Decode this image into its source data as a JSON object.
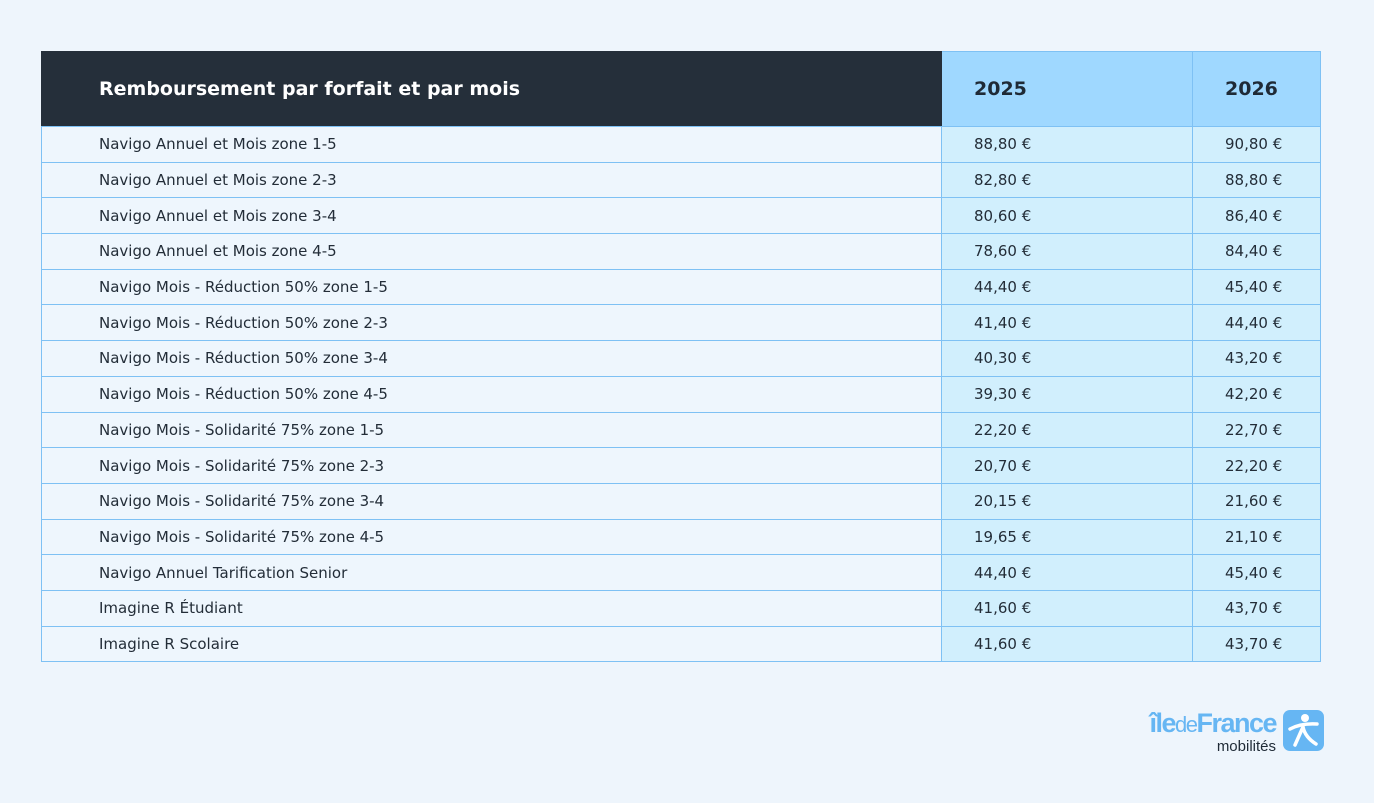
{
  "table": {
    "header": {
      "label": "Remboursement par forfait et par mois",
      "years": [
        "2025",
        "2026"
      ]
    },
    "rows": [
      {
        "label": "Navigo Annuel et Mois zone 1-5",
        "v2025": "88,80 €",
        "v2026": "90,80 €"
      },
      {
        "label": "Navigo Annuel et Mois zone 2-3",
        "v2025": "82,80 €",
        "v2026": "88,80 €"
      },
      {
        "label": "Navigo Annuel et Mois zone 3-4",
        "v2025": "80,60 €",
        "v2026": "86,40 €"
      },
      {
        "label": "Navigo Annuel et Mois zone 4-5",
        "v2025": "78,60 €",
        "v2026": "84,40 €"
      },
      {
        "label": "Navigo Mois - Réduction 50% zone 1-5",
        "v2025": "44,40 €",
        "v2026": "45,40 €"
      },
      {
        "label": "Navigo Mois - Réduction 50% zone 2-3",
        "v2025": "41,40 €",
        "v2026": "44,40 €"
      },
      {
        "label": "Navigo Mois - Réduction 50% zone 3-4",
        "v2025": "40,30 €",
        "v2026": "43,20 €"
      },
      {
        "label": "Navigo Mois - Réduction 50% zone 4-5",
        "v2025": "39,30 €",
        "v2026": "42,20 €"
      },
      {
        "label": "Navigo Mois - Solidarité 75% zone 1-5",
        "v2025": "22,20 €",
        "v2026": "22,70 €"
      },
      {
        "label": "Navigo Mois - Solidarité 75% zone 2-3",
        "v2025": "20,70 €",
        "v2026": "22,20 €"
      },
      {
        "label": "Navigo Mois - Solidarité 75% zone 3-4",
        "v2025": "20,15 €",
        "v2026": "21,60 €"
      },
      {
        "label": "Navigo Mois - Solidarité 75% zone 4-5",
        "v2025": "19,65 €",
        "v2026": "21,10 €"
      },
      {
        "label": "Navigo Annuel Tarification Senior",
        "v2025": "44,40 €",
        "v2026": "45,40 €"
      },
      {
        "label": "Imagine R Étudiant",
        "v2025": "41,60 €",
        "v2026": "43,70 €"
      },
      {
        "label": "Imagine R Scolaire",
        "v2025": "41,60 €",
        "v2026": "43,70 €"
      }
    ]
  },
  "logo": {
    "line1_a": "île",
    "line1_b": "de",
    "line1_c": "France",
    "line2": "mobilités",
    "icon": "person-walking-icon"
  },
  "colors": {
    "header_dark": "#252f3a",
    "header_year": "#9fd8ff",
    "cell_value": "#d1effd",
    "border": "#7ec1f4",
    "brand": "#66b6f3"
  }
}
